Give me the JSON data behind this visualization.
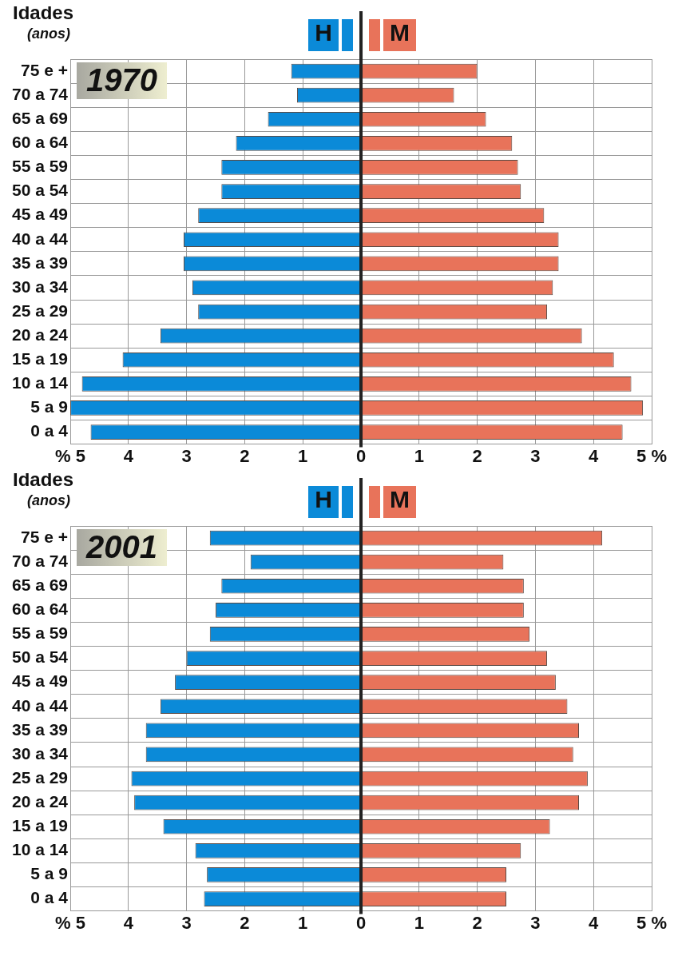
{
  "chart_data": [
    {
      "type": "bar",
      "orientation": "horizontal",
      "stacked": true,
      "title": "1970",
      "ylabel": "Idades (anos)",
      "categories": [
        "75 e +",
        "70 a 74",
        "65 a 69",
        "60 a 64",
        "55 a 59",
        "50 a 54",
        "45 a 49",
        "40 a 44",
        "35 a 39",
        "30 a 34",
        "25 a 29",
        "20 a 24",
        "15 a 19",
        "10 a 14",
        "5 a 9",
        "0 a 4"
      ],
      "series": [
        {
          "name": "H",
          "color": "#0b8ad8",
          "values": [
            -1.2,
            -1.1,
            -1.6,
            -2.15,
            -2.4,
            -2.4,
            -2.8,
            -3.05,
            -3.05,
            -2.9,
            -2.8,
            -3.45,
            -4.1,
            -4.8,
            -5.0,
            -4.65
          ]
        },
        {
          "name": "M",
          "color": "#e8735a",
          "values": [
            2.0,
            1.6,
            2.15,
            2.6,
            2.7,
            2.75,
            3.15,
            3.4,
            3.4,
            3.3,
            3.2,
            3.8,
            4.35,
            4.65,
            4.85,
            4.5
          ]
        }
      ],
      "xlim": [
        -5,
        5
      ],
      "xticks": [
        {
          "value": -5,
          "label": "% 5"
        },
        {
          "value": -4,
          "label": "4"
        },
        {
          "value": -3,
          "label": "3"
        },
        {
          "value": -2,
          "label": "2"
        },
        {
          "value": -1,
          "label": "1"
        },
        0,
        1,
        2,
        3,
        4,
        {
          "value": 5,
          "label": "5 %"
        }
      ],
      "grid": true,
      "legend": "top"
    },
    {
      "type": "bar",
      "orientation": "horizontal",
      "stacked": true,
      "title": "2001",
      "ylabel": "Idades (anos)",
      "categories": [
        "75 e +",
        "70 a 74",
        "65 a 69",
        "60 a 64",
        "55 a 59",
        "50 a 54",
        "45 a 49",
        "40 a 44",
        "35 a 39",
        "30 a 34",
        "25 a 29",
        "20 a 24",
        "15 a 19",
        "10 a 14",
        "5 a 9",
        "0 a 4"
      ],
      "series": [
        {
          "name": "H",
          "color": "#0b8ad8",
          "values": [
            -2.6,
            -1.9,
            -2.4,
            -2.5,
            -2.6,
            -3.0,
            -3.2,
            -3.45,
            -3.7,
            -3.7,
            -3.95,
            -3.9,
            -3.4,
            -2.85,
            -2.65,
            -2.7
          ]
        },
        {
          "name": "M",
          "color": "#e8735a",
          "values": [
            4.15,
            2.45,
            2.8,
            2.8,
            2.9,
            3.2,
            3.35,
            3.55,
            3.75,
            3.65,
            3.9,
            3.75,
            3.25,
            2.75,
            2.5,
            2.5
          ]
        }
      ],
      "xlim": [
        -5,
        5
      ],
      "xticks": [
        {
          "value": -5,
          "label": "% 5"
        },
        {
          "value": -4,
          "label": "4"
        },
        {
          "value": -3,
          "label": "3"
        },
        {
          "value": -2,
          "label": "2"
        },
        {
          "value": -1,
          "label": "1"
        },
        0,
        1,
        2,
        3,
        4,
        {
          "value": 5,
          "label": "5 %"
        }
      ],
      "grid": true,
      "legend": "top"
    }
  ]
}
